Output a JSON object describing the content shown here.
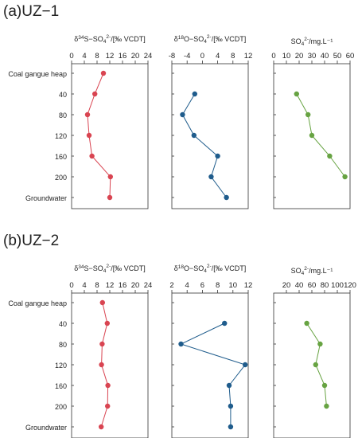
{
  "chart_data": [
    {
      "panel_label": "(a)",
      "panel_name": "UZ−1",
      "depth_labels": [
        "Coal gangue heap",
        "40",
        "80",
        "120",
        "160",
        "200",
        "Groundwater"
      ],
      "subplots": [
        {
          "type": "line",
          "title_pre": "δ",
          "title_sup": "34",
          "title_mid": "S−SO",
          "title_sub": "4",
          "title_sup2": "2-",
          "title_post": "/[‰ VCDT]",
          "xlim": [
            0,
            24
          ],
          "ticks": [
            0,
            4,
            8,
            12,
            16,
            20,
            24
          ],
          "color": "#d94451",
          "values": [
            10,
            7.3,
            5,
            5.5,
            6.4,
            12.2,
            12
          ]
        },
        {
          "type": "line",
          "title_pre": "δ",
          "title_sup": "18",
          "title_mid": "O−SO",
          "title_sub": "4",
          "title_sup2": "2-",
          "title_post": "/[‰ VCDT]",
          "xlim": [
            -8,
            12
          ],
          "ticks": [
            -8,
            -4,
            0,
            4,
            8,
            12
          ],
          "color": "#1f5c8c",
          "values": [
            null,
            -2,
            -5.2,
            -2.2,
            4,
            2.3,
            6.3
          ]
        },
        {
          "type": "line",
          "title_pre": "",
          "title_sup": "",
          "title_mid": "SO",
          "title_sub": "4",
          "title_sup2": "2-",
          "title_post": "/mg.L⁻¹",
          "xlim": [
            0,
            60
          ],
          "ticks": [
            0,
            10,
            20,
            30,
            40,
            50,
            60
          ],
          "color": "#67a342",
          "values": [
            null,
            18,
            27,
            30,
            44,
            56,
            null
          ]
        }
      ]
    },
    {
      "panel_label": "(b)",
      "panel_name": "UZ−2",
      "depth_labels": [
        "Coal gangue heap",
        "40",
        "80",
        "120",
        "160",
        "200",
        "Groundwater"
      ],
      "subplots": [
        {
          "type": "line",
          "title_pre": "δ",
          "title_sup": "34",
          "title_mid": "S−SO",
          "title_sub": "4",
          "title_sup2": "2-",
          "title_post": "/[‰ VCDT]",
          "xlim": [
            0,
            24
          ],
          "ticks": [
            0,
            4,
            8,
            12,
            16,
            20,
            24
          ],
          "color": "#d94451",
          "values": [
            9.7,
            11.2,
            9.6,
            9.4,
            11.4,
            11.3,
            9.3
          ]
        },
        {
          "type": "line",
          "title_pre": "δ",
          "title_sup": "18",
          "title_mid": "O−SO",
          "title_sub": "4",
          "title_sup2": "2-",
          "title_post": "/[‰ VCDT]",
          "xlim": [
            2,
            12
          ],
          "ticks": [
            2,
            4,
            6,
            8,
            10,
            12
          ],
          "color": "#1f5c8c",
          "values": [
            null,
            8.9,
            3.2,
            11.6,
            9.5,
            9.7,
            9.7
          ]
        },
        {
          "type": "line",
          "title_pre": "",
          "title_sup": "",
          "title_mid": "SO",
          "title_sub": "4",
          "title_sup2": "2-",
          "title_post": "/mg.L⁻¹",
          "xlim": [
            0,
            120
          ],
          "ticks": [
            20,
            40,
            60,
            80,
            100,
            120
          ],
          "color": "#67a342",
          "values": [
            null,
            52,
            73,
            66,
            80,
            83,
            null
          ]
        }
      ]
    }
  ]
}
